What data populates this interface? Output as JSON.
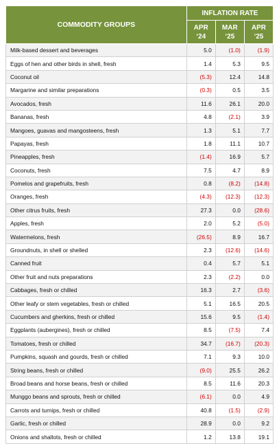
{
  "header": {
    "group_label": "COMMODITY GROUPS",
    "rate_label": "INFLATION RATE",
    "columns": [
      {
        "month": "APR",
        "year": "‘24"
      },
      {
        "month": "MAR",
        "year": "‘25"
      },
      {
        "month": "APR",
        "year": "‘25"
      }
    ]
  },
  "table": {
    "rows": [
      [
        "Milk-based dessert and beverages",
        "5.0",
        "(1.0)",
        "(1.9)"
      ],
      [
        "Eggs of hen and other birds in shell, fresh",
        "1.4",
        "5.3",
        "9.5"
      ],
      [
        "Coconut oil",
        "(5.3)",
        "12.4",
        "14.8"
      ],
      [
        "Margarine and similar preparations",
        "(0.3)",
        "0.5",
        "3.5"
      ],
      [
        "Avocados, fresh",
        "11.6",
        "26.1",
        "20.0"
      ],
      [
        "Bananas, fresh",
        "4.8",
        "(2.1)",
        "3.9"
      ],
      [
        "Mangoes, guavas and mangosteens, fresh",
        "1.3",
        "5.1",
        "7.7"
      ],
      [
        "Papayas, fresh",
        "1.8",
        "11.1",
        "10.7"
      ],
      [
        "Pineapples, fresh",
        "(1.4)",
        "16.9",
        "5.7"
      ],
      [
        "Coconuts, fresh",
        "7.5",
        "4.7",
        "8.9"
      ],
      [
        "Pomelos and grapefruits, fresh",
        "0.8",
        "(8.2)",
        "(14.8)"
      ],
      [
        "Oranges, fresh",
        "(4.3)",
        "(12.3)",
        "(12.3)"
      ],
      [
        "Other citrus fruits, fresh",
        "27.3",
        "0.0",
        "(28.6)"
      ],
      [
        "Apples, fresh",
        "2.0",
        "5.2",
        "(5.0)"
      ],
      [
        "Watermelons, fresh",
        "(26.5)",
        "8.9",
        "16.7"
      ],
      [
        "Groundnuts, in shell or shelled",
        "2.3",
        "(12.6)",
        "(14.6)"
      ],
      [
        "Canned fruit",
        "0.4",
        "5.7",
        "5.1"
      ],
      [
        "Other fruit and nuts preparations",
        "2.3",
        "(2.2)",
        "0.0"
      ],
      [
        "Cabbages, fresh or chilled",
        "16.3",
        "2.7",
        "(3.6)"
      ],
      [
        "Other leafy or stem vegetables, fresh or chilled",
        "5.1",
        "16.5",
        "20.5"
      ],
      [
        "Cucumbers and gherkins, fresh or chilled",
        "15.6",
        "9.5",
        "(1.4)"
      ],
      [
        "Eggplants (aubergines), fresh or chilled",
        "8.5",
        "(7.5)",
        "7.4"
      ],
      [
        "Tomatoes, fresh or chilled",
        "34.7",
        "(16.7)",
        "(20.3)"
      ],
      [
        "Pumpkins, squash and gourds, fresh or chilled",
        "7.1",
        "9.3",
        "10.0"
      ],
      [
        "String beans, fresh or chilled",
        "(9.0)",
        "25.5",
        "26.2"
      ],
      [
        "Broad beans and horse beans, fresh or chilled",
        "8.5",
        "11.6",
        "20.3"
      ],
      [
        "Munggo beans and sprouts, fresh or chilled",
        "(6.1)",
        "0.0",
        "4.9"
      ],
      [
        "Carrots and turnips, fresh or chilled",
        "40.8",
        "(1.5)",
        "(2.9)"
      ],
      [
        "Garlic, fresh or chilled",
        "28.9",
        "0.0",
        "9.2"
      ],
      [
        "Onions and shallots, fresh or chilled",
        "1.2",
        "13.8",
        "19.1"
      ]
    ]
  }
}
